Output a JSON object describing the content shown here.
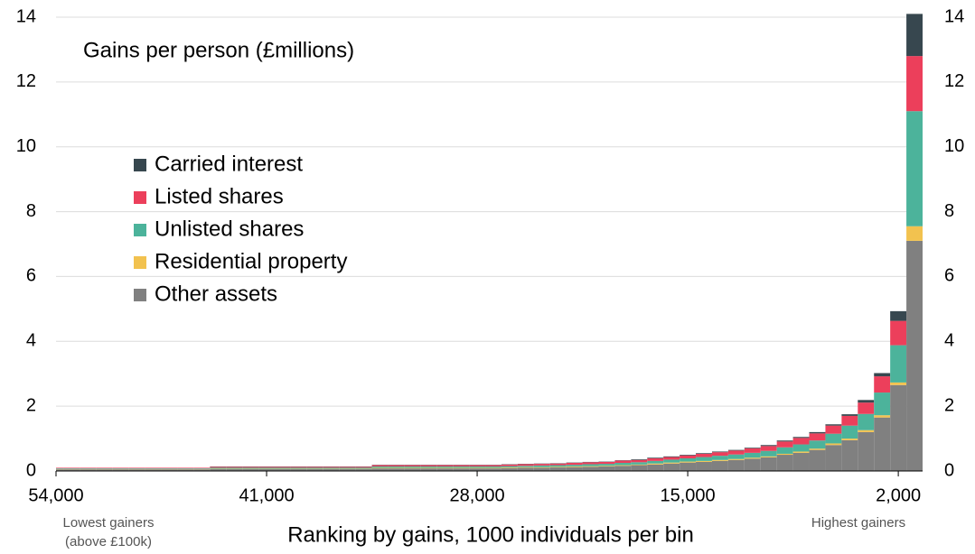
{
  "chart_data": {
    "type": "bar",
    "annotation_title": "Gains per person (£millions)",
    "x_label": "Ranking by gains, 1000 individuals per bin",
    "left_note": [
      "Lowest gainers",
      "(above £100k)"
    ],
    "right_note": "Highest gainers",
    "x": [
      54000,
      53000,
      52000,
      51000,
      50000,
      49000,
      48000,
      47000,
      46000,
      45000,
      44000,
      43000,
      42000,
      41000,
      40000,
      39000,
      38000,
      37000,
      36000,
      35000,
      34000,
      33000,
      32000,
      31000,
      30000,
      29000,
      28000,
      27000,
      26000,
      25000,
      24000,
      23000,
      22000,
      21000,
      20000,
      19000,
      18000,
      17000,
      16000,
      15000,
      14000,
      13000,
      12000,
      11000,
      10000,
      9000,
      8000,
      7000,
      6000,
      5000,
      4000,
      3000,
      2000,
      1000
    ],
    "xlim": [
      54000,
      500
    ],
    "xticks": [
      {
        "value": 54000,
        "label": "54,000"
      },
      {
        "value": 41000,
        "label": "41,000"
      },
      {
        "value": 28000,
        "label": "28,000"
      },
      {
        "value": 15000,
        "label": "15,000"
      },
      {
        "value": 2000,
        "label": "2,000"
      }
    ],
    "ylim": [
      0,
      14
    ],
    "yticks": [
      0,
      2,
      4,
      6,
      8,
      10,
      12,
      14
    ],
    "y2lim": [
      0,
      14
    ],
    "y2ticks": [
      0,
      2,
      4,
      6,
      8,
      10,
      12,
      14
    ],
    "grid": true,
    "legend": "upper left",
    "series": [
      {
        "name": "Carried interest",
        "color": "#37474f",
        "values": [
          0,
          0,
          0,
          0,
          0,
          0,
          0,
          0,
          0,
          0,
          0.01,
          0.01,
          0.01,
          0.01,
          0.01,
          0.01,
          0.01,
          0.01,
          0.01,
          0.01,
          0.01,
          0.01,
          0.01,
          0.01,
          0.01,
          0.01,
          0.01,
          0.01,
          0.01,
          0.01,
          0.01,
          0.01,
          0.01,
          0.01,
          0.01,
          0.01,
          0.02,
          0.02,
          0.02,
          0.02,
          0.02,
          0.02,
          0.02,
          0.02,
          0.03,
          0.03,
          0.03,
          0.04,
          0.04,
          0.05,
          0.08,
          0.1,
          0.3,
          1.3
        ]
      },
      {
        "name": "Listed shares",
        "color": "#ec3f5b",
        "values": [
          0.02,
          0.02,
          0.02,
          0.02,
          0.02,
          0.02,
          0.02,
          0.02,
          0.02,
          0.02,
          0.03,
          0.03,
          0.03,
          0.03,
          0.03,
          0.03,
          0.03,
          0.03,
          0.03,
          0.03,
          0.04,
          0.04,
          0.04,
          0.04,
          0.04,
          0.04,
          0.04,
          0.04,
          0.05,
          0.05,
          0.05,
          0.05,
          0.06,
          0.06,
          0.06,
          0.07,
          0.07,
          0.08,
          0.08,
          0.09,
          0.1,
          0.11,
          0.12,
          0.14,
          0.15,
          0.18,
          0.2,
          0.22,
          0.25,
          0.3,
          0.35,
          0.5,
          0.75,
          1.7
        ]
      },
      {
        "name": "Unlisted shares",
        "color": "#4cb39b",
        "values": [
          0.02,
          0.02,
          0.02,
          0.02,
          0.02,
          0.02,
          0.02,
          0.02,
          0.02,
          0.02,
          0.03,
          0.03,
          0.03,
          0.03,
          0.03,
          0.03,
          0.03,
          0.03,
          0.03,
          0.03,
          0.04,
          0.04,
          0.04,
          0.04,
          0.04,
          0.04,
          0.04,
          0.04,
          0.04,
          0.04,
          0.05,
          0.05,
          0.05,
          0.06,
          0.06,
          0.07,
          0.07,
          0.08,
          0.09,
          0.1,
          0.12,
          0.13,
          0.14,
          0.15,
          0.17,
          0.2,
          0.22,
          0.25,
          0.3,
          0.4,
          0.5,
          0.7,
          1.15,
          3.55
        ]
      },
      {
        "name": "Residential property",
        "color": "#f2c24f",
        "values": [
          0.01,
          0.01,
          0.01,
          0.01,
          0.01,
          0.01,
          0.01,
          0.01,
          0.01,
          0.01,
          0.01,
          0.01,
          0.01,
          0.01,
          0.01,
          0.01,
          0.01,
          0.01,
          0.01,
          0.01,
          0.02,
          0.02,
          0.02,
          0.02,
          0.02,
          0.02,
          0.02,
          0.02,
          0.02,
          0.02,
          0.02,
          0.02,
          0.02,
          0.02,
          0.02,
          0.02,
          0.02,
          0.03,
          0.03,
          0.03,
          0.03,
          0.03,
          0.03,
          0.03,
          0.03,
          0.03,
          0.04,
          0.04,
          0.05,
          0.05,
          0.06,
          0.07,
          0.08,
          0.45
        ]
      },
      {
        "name": "Other assets",
        "color": "#808080",
        "values": [
          0.05,
          0.05,
          0.05,
          0.05,
          0.05,
          0.05,
          0.05,
          0.05,
          0.05,
          0.05,
          0.06,
          0.06,
          0.06,
          0.06,
          0.06,
          0.06,
          0.06,
          0.06,
          0.06,
          0.06,
          0.08,
          0.08,
          0.08,
          0.08,
          0.08,
          0.08,
          0.08,
          0.08,
          0.09,
          0.1,
          0.1,
          0.11,
          0.12,
          0.13,
          0.14,
          0.16,
          0.18,
          0.2,
          0.23,
          0.26,
          0.28,
          0.31,
          0.34,
          0.38,
          0.42,
          0.5,
          0.56,
          0.65,
          0.8,
          0.95,
          1.2,
          1.65,
          2.65,
          7.1
        ]
      }
    ]
  }
}
